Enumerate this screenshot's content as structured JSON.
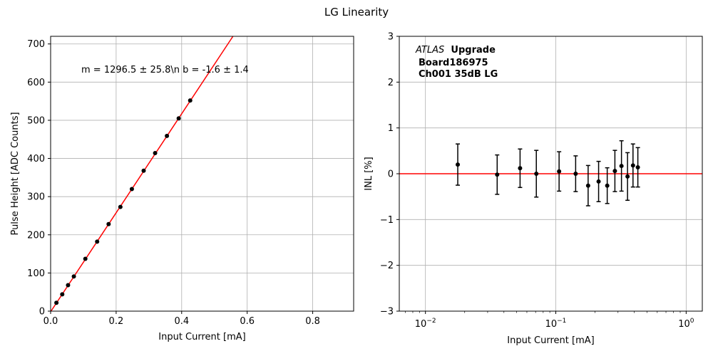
{
  "figure": {
    "suptitle": "LG Linearity"
  },
  "chart_data": [
    {
      "type": "scatter",
      "xlabel": "Input Current [mA]",
      "ylabel": "Pulse Height [ADC Counts]",
      "xlim": [
        0,
        0.925
      ],
      "ylim": [
        0,
        720
      ],
      "xticks": [
        "0.0",
        "0.2",
        "0.4",
        "0.6",
        "0.8"
      ],
      "xtick_values": [
        0,
        0.2,
        0.4,
        0.6,
        0.8
      ],
      "yticks": [
        "0",
        "100",
        "200",
        "300",
        "400",
        "500",
        "600",
        "700"
      ],
      "ytick_values": [
        0,
        100,
        200,
        300,
        400,
        500,
        600,
        700
      ],
      "grid": true,
      "annotation": "m = 1296.5 ± 25.8\\n b = -1.6 ± 1.4",
      "fit_line": {
        "slope": 1296.5,
        "intercept": -1.6,
        "color": "#ff0000"
      },
      "marker_color": "#000000",
      "x": [
        0.0177,
        0.0355,
        0.0532,
        0.0709,
        0.106,
        0.142,
        0.177,
        0.213,
        0.248,
        0.284,
        0.319,
        0.355,
        0.391,
        0.426
      ],
      "y": [
        22,
        44,
        68,
        91,
        137,
        182,
        228,
        273,
        320,
        368,
        414,
        459,
        505,
        552
      ]
    },
    {
      "type": "scatter",
      "xscale": "log",
      "xlabel": "Input Current [mA]",
      "ylabel": "INL [%]",
      "xlim": [
        0.0063,
        1.33
      ],
      "ylim": [
        -3,
        3
      ],
      "xticks": [
        "10−2",
        "10−1",
        "100"
      ],
      "xtick_values": [
        0.01,
        0.1,
        1
      ],
      "yticks": [
        "−3",
        "−2",
        "−1",
        "0",
        "1",
        "2",
        "3"
      ],
      "ytick_values": [
        -3,
        -2,
        -1,
        0,
        1,
        2,
        3
      ],
      "grid": true,
      "reference_line": {
        "y": 0,
        "color": "#ff0000"
      },
      "label_atlas": "ATLAS",
      "label_upgrade": "Upgrade",
      "label_board": "Board186975",
      "label_channel": "Ch001 35dB LG",
      "marker_color": "#000000",
      "x": [
        0.0177,
        0.0355,
        0.0532,
        0.0709,
        0.106,
        0.142,
        0.177,
        0.213,
        0.248,
        0.284,
        0.319,
        0.355,
        0.391,
        0.426
      ],
      "y": [
        0.2,
        -0.02,
        0.12,
        0.0,
        0.05,
        0.0,
        -0.26,
        -0.17,
        -0.26,
        0.06,
        0.17,
        -0.06,
        0.18,
        0.14
      ],
      "yerr": [
        0.45,
        0.43,
        0.42,
        0.51,
        0.43,
        0.39,
        0.44,
        0.44,
        0.39,
        0.45,
        0.55,
        0.52,
        0.47,
        0.43
      ]
    }
  ]
}
